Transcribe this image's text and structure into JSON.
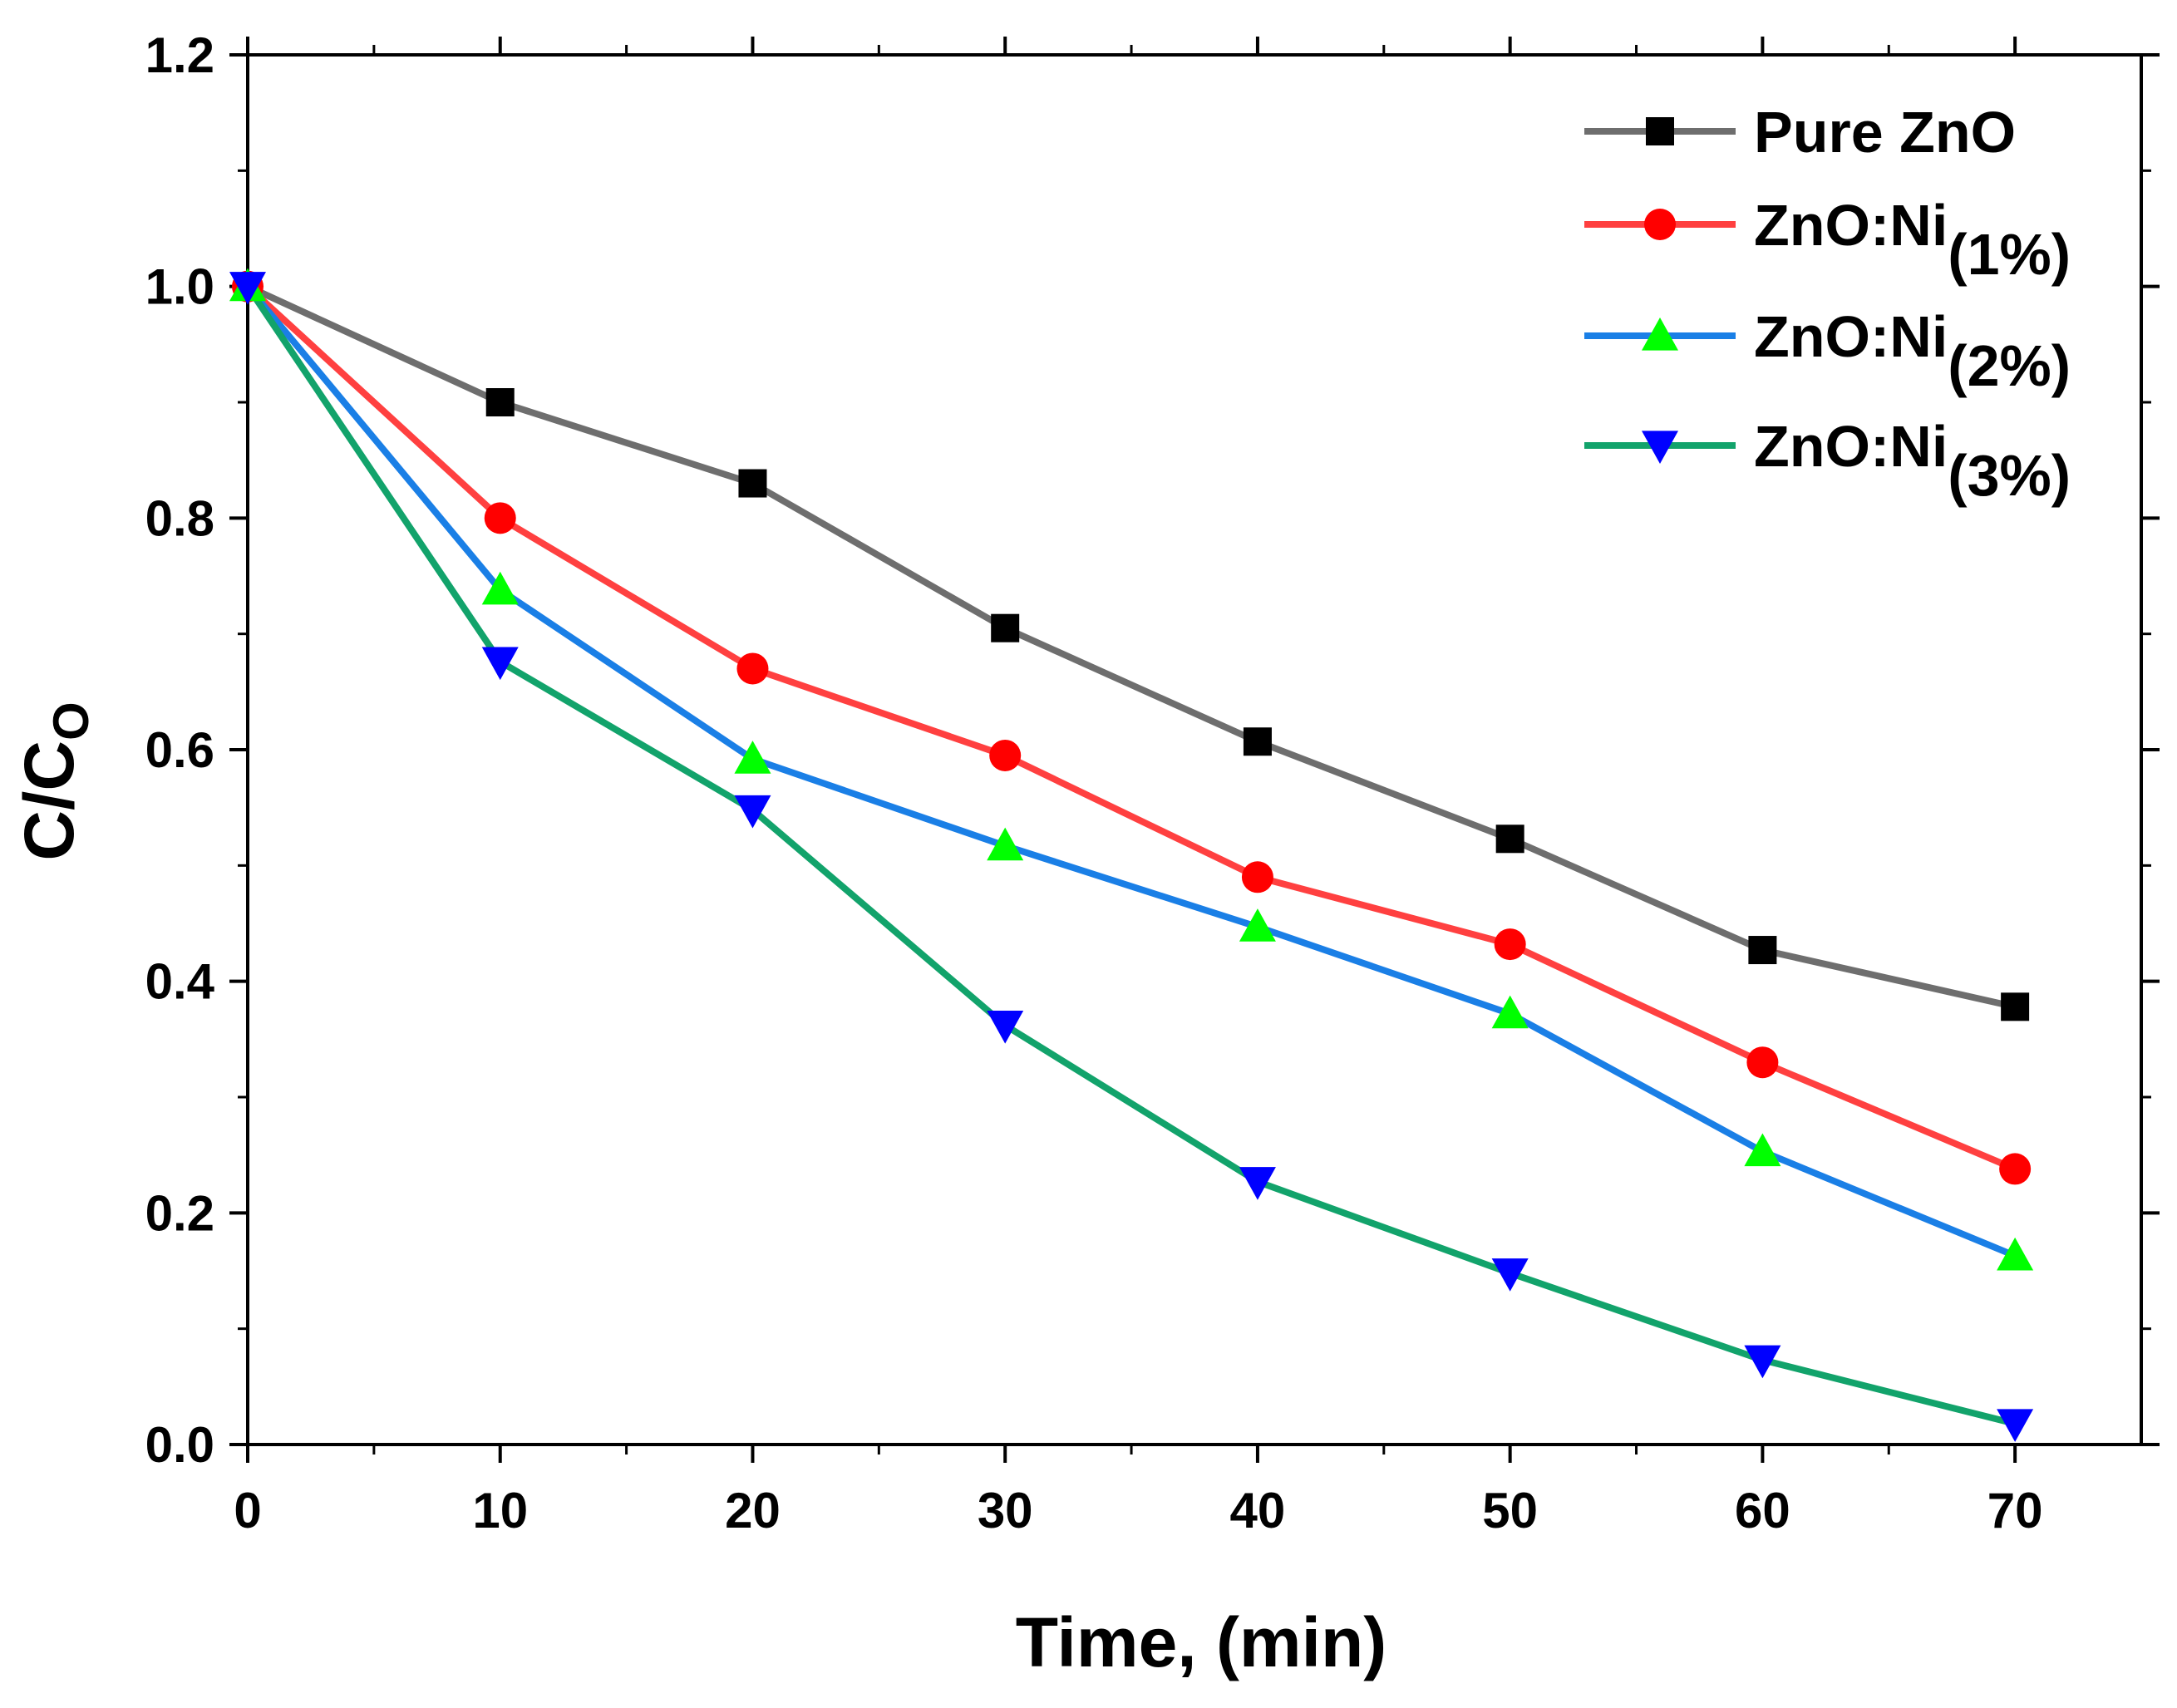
{
  "chart_data": {
    "type": "line",
    "title": "",
    "xlabel": "Time, (min)",
    "ylabel": "C/C",
    "ylabel_subscript": "O",
    "xlim": [
      0,
      75
    ],
    "ylim": [
      0.0,
      1.2
    ],
    "x_ticks": [
      0,
      10,
      20,
      30,
      40,
      50,
      60,
      70
    ],
    "x_tick_labels": [
      "0",
      "10",
      "20",
      "30",
      "40",
      "50",
      "60",
      "70"
    ],
    "y_ticks": [
      0.0,
      0.2,
      0.4,
      0.6,
      0.8,
      1.0,
      1.2
    ],
    "y_tick_labels": [
      "0.0",
      "0.2",
      "0.4",
      "0.6",
      "0.8",
      "1.0",
      "1.2"
    ],
    "grid": false,
    "legend_position": "top-right",
    "x": [
      0,
      10,
      20,
      30,
      40,
      50,
      60,
      70
    ],
    "series": [
      {
        "name": "Pure ZnO",
        "legend_main": "Pure ZnO",
        "legend_sub": "",
        "line_color": "#6e6e6e",
        "marker": "square",
        "marker_color": "#000000",
        "values": [
          1.0,
          0.9,
          0.83,
          0.705,
          0.607,
          0.523,
          0.427,
          0.378
        ]
      },
      {
        "name": "ZnO:Ni(1%)",
        "legend_main": "ZnO:Ni",
        "legend_sub": "(1%)",
        "line_color": "#ff4040",
        "marker": "circle",
        "marker_color": "#ff0000",
        "values": [
          1.0,
          0.8,
          0.67,
          0.595,
          0.49,
          0.432,
          0.33,
          0.238
        ]
      },
      {
        "name": "ZnO:Ni(2%)",
        "legend_main": "ZnO:Ni",
        "legend_sub": "(2%)",
        "line_color": "#1a7fe6",
        "marker": "triangle-up",
        "marker_color": "#00ff00",
        "values": [
          1.0,
          0.738,
          0.592,
          0.517,
          0.447,
          0.372,
          0.253,
          0.163
        ]
      },
      {
        "name": "ZnO:Ni(3%)",
        "legend_main": "ZnO:Ni",
        "legend_sub": "(3%)",
        "line_color": "#12a36b",
        "marker": "triangle-down",
        "marker_color": "#0000ff",
        "values": [
          1.0,
          0.676,
          0.548,
          0.362,
          0.227,
          0.148,
          0.073,
          0.018
        ]
      }
    ]
  }
}
